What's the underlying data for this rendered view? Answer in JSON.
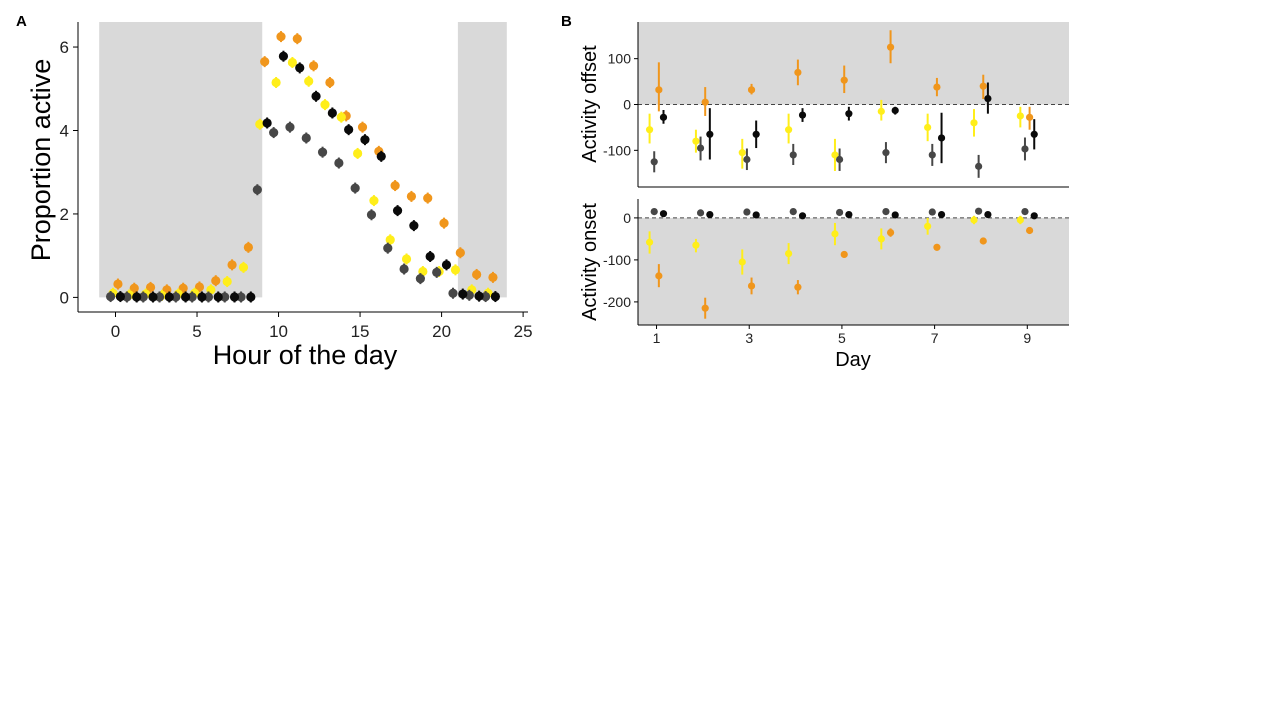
{
  "colors": {
    "orange": "#f0961c",
    "yellow": "#ffee1a",
    "dark_grey": "#474747",
    "black": "#0a0a0a",
    "shade": "#d9d9d9"
  },
  "chart_data": [
    {
      "panel_label": "A",
      "type": "scatter",
      "title": "",
      "xlabel": "Hour of the day",
      "ylabel": "Proportion active",
      "xlim": [
        -2.3,
        25.3
      ],
      "ylim": [
        -0.35,
        6.6
      ],
      "xticks": [
        "0",
        "5",
        "10",
        "15",
        "20",
        "25"
      ],
      "yticks": [
        "0",
        "2",
        "4",
        "6"
      ],
      "shaded_hours": [
        [
          -1,
          9
        ],
        [
          21,
          24
        ]
      ],
      "grid": false,
      "legend": "none",
      "series": [
        {
          "color": "orange",
          "offset": 0.15,
          "values": [
            0.32,
            0.22,
            0.24,
            0.18,
            0.22,
            0.25,
            0.4,
            0.78,
            1.2,
            5.65,
            6.25,
            6.2,
            5.55,
            5.15,
            4.35,
            4.08,
            3.5,
            2.68,
            2.42,
            2.38,
            1.78,
            1.07,
            0.55,
            0.48
          ]
        },
        {
          "color": "yellow",
          "offset": -0.15,
          "values": [
            0.1,
            0.06,
            0.08,
            0.05,
            0.08,
            0.1,
            0.18,
            0.38,
            0.72,
            4.15,
            5.15,
            5.63,
            5.18,
            4.62,
            4.32,
            3.45,
            2.32,
            1.38,
            0.92,
            0.62,
            0.62,
            0.66,
            0.18,
            0.1
          ]
        },
        {
          "color": "dark_grey",
          "offset": -0.3,
          "values": [
            0.02,
            0.01,
            0.01,
            0.01,
            0.01,
            0.01,
            0.01,
            0.01,
            0.01,
            2.58,
            3.95,
            4.08,
            3.82,
            3.48,
            3.22,
            2.62,
            1.98,
            1.18,
            0.68,
            0.45,
            0.6,
            0.1,
            0.05,
            0.02
          ]
        },
        {
          "color": "black",
          "offset": 0.3,
          "values": [
            0.02,
            0.01,
            0.01,
            0.01,
            0.01,
            0.01,
            0.01,
            0.01,
            0.01,
            4.18,
            5.78,
            5.5,
            4.82,
            4.42,
            4.02,
            3.78,
            3.38,
            2.08,
            1.72,
            0.98,
            0.78,
            0.08,
            0.03,
            0.02
          ]
        }
      ]
    },
    {
      "panel_label": "B",
      "type": "scatter",
      "title": "",
      "xlabel": "Day",
      "xlim": [
        0.6,
        9.9
      ],
      "xticks": [
        "1",
        "3",
        "5",
        "7",
        "9"
      ],
      "legend": "none",
      "panels": [
        {
          "ylabel": "Activity offset",
          "ylim": [
            -180,
            180
          ],
          "yticks": [
            "100",
            "0",
            "-100"
          ],
          "shade": "above_zero",
          "series": [
            {
              "color": "yellow",
              "offset": -0.15,
              "values": [
                -55,
                -80,
                -105,
                -55,
                -110,
                -15,
                -50,
                -40,
                -25
              ],
              "lower": [
                -85,
                -105,
                -140,
                -85,
                -145,
                -35,
                -80,
                -70,
                -50
              ],
              "upper": [
                -20,
                -55,
                -75,
                -20,
                -75,
                10,
                -20,
                -10,
                -5
              ]
            },
            {
              "color": "orange",
              "offset": 0.05,
              "values": [
                32,
                5,
                32,
                70,
                53,
                125,
                38,
                40,
                -28
              ],
              "lower": [
                -15,
                -25,
                22,
                42,
                25,
                90,
                18,
                12,
                -55
              ],
              "upper": [
                92,
                38,
                45,
                98,
                85,
                162,
                58,
                65,
                -5
              ]
            },
            {
              "color": "dark_grey",
              "offset": -0.05,
              "values": [
                -125,
                -95,
                -120,
                -110,
                -120,
                -105,
                -110,
                -135,
                -97
              ],
              "lower": [
                -148,
                -122,
                -143,
                -132,
                -145,
                -128,
                -134,
                -160,
                -122
              ],
              "upper": [
                -102,
                -70,
                -96,
                -86,
                -96,
                -82,
                -86,
                -110,
                -72
              ]
            },
            {
              "color": "black",
              "offset": 0.15,
              "values": [
                -28,
                -65,
                -65,
                -23,
                -20,
                -13,
                -73,
                13,
                -65
              ],
              "lower": [
                -42,
                -120,
                -95,
                -38,
                -35,
                -22,
                -128,
                -20,
                -98
              ],
              "upper": [
                -12,
                -8,
                -35,
                -8,
                -5,
                -5,
                -18,
                48,
                -32
              ]
            }
          ]
        },
        {
          "ylabel": "Activity onset",
          "ylim": [
            -255,
            45
          ],
          "yticks": [
            "0",
            "-100",
            "-200"
          ],
          "shade": "below_zero",
          "series": [
            {
              "color": "yellow",
              "offset": -0.15,
              "values": [
                -58,
                -65,
                -105,
                -85,
                -38,
                -50,
                -20,
                -5,
                -5
              ],
              "lower": [
                -85,
                -82,
                -135,
                -110,
                -65,
                -75,
                -40,
                -15,
                -15
              ],
              "upper": [
                -32,
                -50,
                -75,
                -60,
                -12,
                -25,
                0,
                5,
                5
              ]
            },
            {
              "color": "orange",
              "offset": 0.05,
              "values": [
                -138,
                -215,
                -162,
                -165,
                -87,
                -35,
                -70,
                -55,
                -30
              ],
              "lower": [
                -165,
                -240,
                -182,
                -182,
                -95,
                -45,
                -78,
                -62,
                -38
              ],
              "upper": [
                -110,
                -190,
                -142,
                -148,
                -79,
                -25,
                -62,
                -48,
                -22
              ]
            },
            {
              "color": "dark_grey",
              "offset": -0.05,
              "values": [
                15,
                12,
                14,
                15,
                13,
                15,
                14,
                16,
                15
              ],
              "lower": [
                11,
                8,
                10,
                11,
                9,
                11,
                10,
                12,
                11
              ],
              "upper": [
                19,
                16,
                18,
                19,
                17,
                19,
                18,
                20,
                19
              ]
            },
            {
              "color": "black",
              "offset": 0.15,
              "values": [
                10,
                8,
                7,
                5,
                8,
                7,
                8,
                8,
                5
              ],
              "lower": [
                6,
                4,
                3,
                1,
                4,
                3,
                4,
                4,
                1
              ],
              "upper": [
                14,
                12,
                11,
                9,
                12,
                11,
                12,
                12,
                9
              ]
            }
          ]
        }
      ]
    }
  ]
}
